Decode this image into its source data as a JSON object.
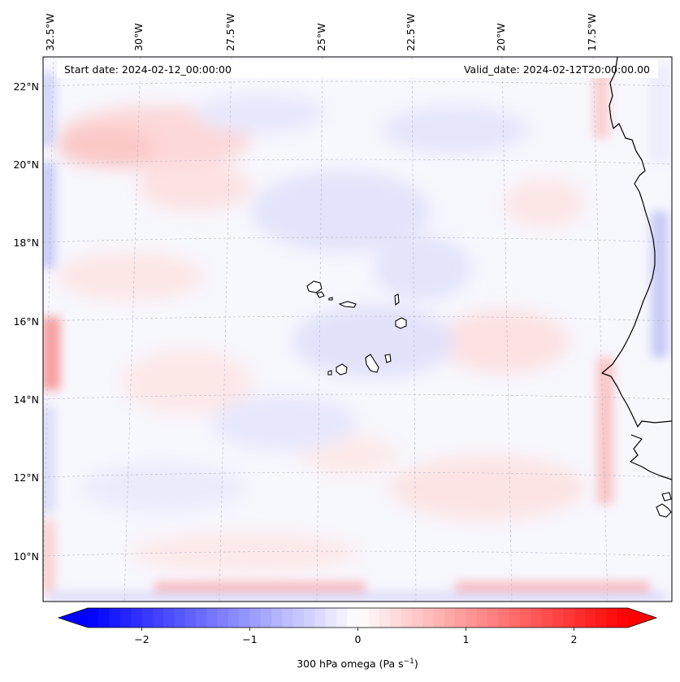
{
  "map": {
    "title_left": "Start date: 2024-02-12_00:00:00",
    "title_right": "Valid_date: 2024-02-12T20:00:00.00",
    "lon_labels": [
      "32.5°W",
      "30°W",
      "27.5°W",
      "25°W",
      "22.5°W",
      "20°W",
      "17.5°W"
    ],
    "lat_labels": [
      "22°N",
      "20°N",
      "18°N",
      "16°N",
      "14°N",
      "12°N",
      "10°N"
    ],
    "features": [
      "Cape Verde islands",
      "West African coastline"
    ],
    "field_colors": {
      "negative": "#0000ff",
      "neutral": "#ffffff",
      "positive": "#ff0000"
    }
  },
  "colorbar": {
    "label_prefix": "300 hPa omega (Pa s",
    "label_exponent": "−1",
    "label_suffix": ")",
    "ticks": [
      "−2",
      "−1",
      "0",
      "1",
      "2"
    ],
    "tick_values": [
      -2,
      -1,
      0,
      1,
      2
    ],
    "range": [
      -2.5,
      2.5
    ],
    "extend": "both",
    "cmap": "bwr"
  }
}
